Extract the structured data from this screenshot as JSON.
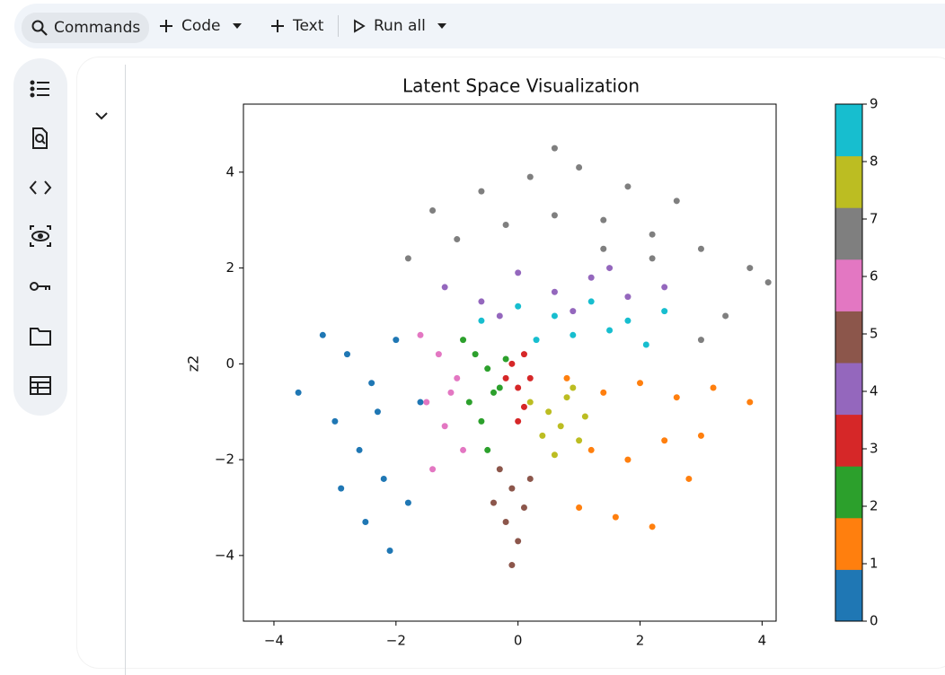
{
  "toolbar": {
    "commands": "Commands",
    "code": "Code",
    "text": "Text",
    "run_all": "Run all"
  },
  "chart_data": {
    "type": "scatter",
    "title": "Latent Space Visualization",
    "y_label": "z2",
    "xlim": [
      -4.5,
      4.23
    ],
    "ylim": [
      -5.37,
      5.42
    ],
    "xticks": [
      {
        "value": -4,
        "label": "−4"
      },
      {
        "value": -2,
        "label": "−2"
      },
      0,
      2,
      4
    ],
    "yticks": [
      {
        "value": -4,
        "label": "−4"
      },
      {
        "value": -2,
        "label": "−2"
      },
      0,
      2,
      4
    ],
    "colorbar": {
      "lim": [
        0,
        9
      ],
      "ticks": [
        0,
        1,
        2,
        3,
        4,
        5,
        6,
        7,
        8,
        9
      ]
    },
    "series": [
      {
        "color": "#1f77b4",
        "x": [
          -3.2,
          -2.8,
          -2.4,
          -2.0,
          -1.6,
          -3.0,
          -2.6,
          -2.2,
          -1.8,
          -2.5,
          -2.1,
          -3.6,
          -2.9,
          -2.3
        ],
        "y": [
          0.6,
          0.2,
          -0.4,
          0.5,
          -0.8,
          -1.2,
          -1.8,
          -2.4,
          -2.9,
          -3.3,
          -3.9,
          -0.6,
          -2.6,
          -1.0
        ]
      },
      {
        "color": "#ff7f0e",
        "x": [
          0.8,
          1.4,
          2.0,
          2.6,
          3.2,
          3.8,
          1.2,
          1.8,
          2.4,
          3.0,
          1.6,
          2.2,
          1.0,
          2.8
        ],
        "y": [
          -0.3,
          -0.6,
          -0.4,
          -0.7,
          -0.5,
          -0.8,
          -1.8,
          -2.0,
          -1.6,
          -1.5,
          -3.2,
          -3.4,
          -3.0,
          -2.4
        ]
      },
      {
        "color": "#2ca02c",
        "x": [
          -0.9,
          -0.7,
          -0.5,
          -0.3,
          -0.8,
          -0.6,
          -0.4,
          -0.2,
          -0.5
        ],
        "y": [
          0.5,
          0.2,
          -0.1,
          -0.5,
          -0.8,
          -1.2,
          -0.6,
          0.1,
          -1.8
        ]
      },
      {
        "color": "#d62728",
        "x": [
          -0.1,
          0.0,
          0.1,
          -0.2,
          0.2,
          0.0,
          0.1
        ],
        "y": [
          0.0,
          -0.5,
          -0.9,
          -0.3,
          -0.3,
          -1.2,
          0.2
        ]
      },
      {
        "color": "#9467bd",
        "x": [
          -1.2,
          -0.6,
          0.0,
          0.6,
          1.2,
          1.8,
          2.4,
          -0.3,
          0.9,
          1.5
        ],
        "y": [
          1.6,
          1.3,
          1.9,
          1.5,
          1.8,
          1.4,
          1.6,
          1.0,
          1.1,
          2.0
        ]
      },
      {
        "color": "#8c564b",
        "x": [
          -0.3,
          -0.1,
          0.1,
          -0.2,
          0.0,
          -0.4,
          0.2,
          -0.1
        ],
        "y": [
          -2.2,
          -2.6,
          -3.0,
          -3.3,
          -3.7,
          -2.9,
          -2.4,
          -4.2
        ]
      },
      {
        "color": "#e377c2",
        "x": [
          -1.6,
          -1.3,
          -1.0,
          -1.5,
          -1.2,
          -0.9,
          -1.4,
          -1.1
        ],
        "y": [
          0.6,
          0.2,
          -0.3,
          -0.8,
          -1.3,
          -1.8,
          -2.2,
          -0.6
        ]
      },
      {
        "color": "#7f7f7f",
        "x": [
          -1.8,
          -1.0,
          -0.2,
          0.6,
          1.4,
          2.2,
          3.0,
          3.8,
          -1.4,
          -0.6,
          0.2,
          1.0,
          1.8,
          2.6,
          3.4,
          0.6,
          1.4,
          2.2,
          3.0,
          4.1
        ],
        "y": [
          2.2,
          2.6,
          2.9,
          3.1,
          3.0,
          2.7,
          2.4,
          2.0,
          3.2,
          3.6,
          3.9,
          4.1,
          3.7,
          3.4,
          1.0,
          4.5,
          2.4,
          2.2,
          0.5,
          1.7
        ]
      },
      {
        "color": "#bcbd22",
        "x": [
          0.2,
          0.5,
          0.8,
          1.1,
          0.4,
          0.7,
          1.0,
          0.6,
          0.9
        ],
        "y": [
          -0.8,
          -1.0,
          -0.7,
          -1.1,
          -1.5,
          -1.3,
          -1.6,
          -1.9,
          -0.5
        ]
      },
      {
        "color": "#17becf",
        "x": [
          -0.6,
          0.0,
          0.6,
          1.2,
          1.8,
          2.4,
          0.3,
          0.9,
          1.5,
          2.1
        ],
        "y": [
          0.9,
          1.2,
          1.0,
          1.3,
          0.9,
          1.1,
          0.5,
          0.6,
          0.7,
          0.4
        ]
      }
    ]
  }
}
